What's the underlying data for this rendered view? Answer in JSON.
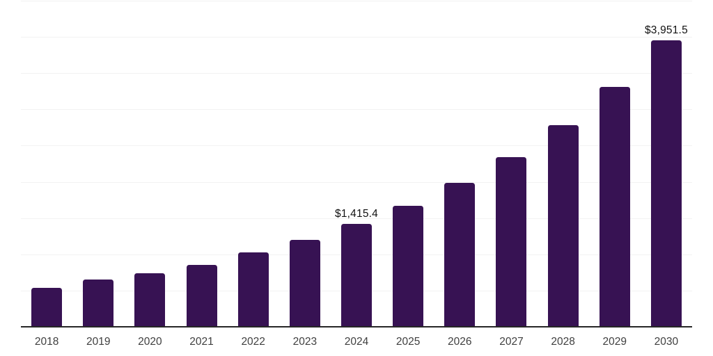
{
  "chart_data": {
    "type": "bar",
    "title": "",
    "xlabel": "",
    "ylabel": "",
    "categories": [
      "2018",
      "2019",
      "2020",
      "2021",
      "2022",
      "2023",
      "2024",
      "2025",
      "2026",
      "2027",
      "2028",
      "2029",
      "2030"
    ],
    "values": [
      535,
      655,
      740,
      855,
      1025,
      1200,
      1415.4,
      1665,
      1985,
      2340,
      2785,
      3310,
      3951.5
    ],
    "bar_labels": [
      "",
      "",
      "",
      "",
      "",
      "",
      "$1,415.4",
      "",
      "",
      "",
      "",
      "",
      "$3,951.5"
    ],
    "ylim": [
      0,
      4500
    ],
    "gridline_step": 500,
    "grid": "horizontal",
    "legend": "none",
    "colors": {
      "bar": "#371253",
      "grid": "#f2f2f2",
      "axis": "#262626",
      "value_label": "#111111",
      "tick_label": "#404040",
      "background": "#ffffff"
    }
  }
}
